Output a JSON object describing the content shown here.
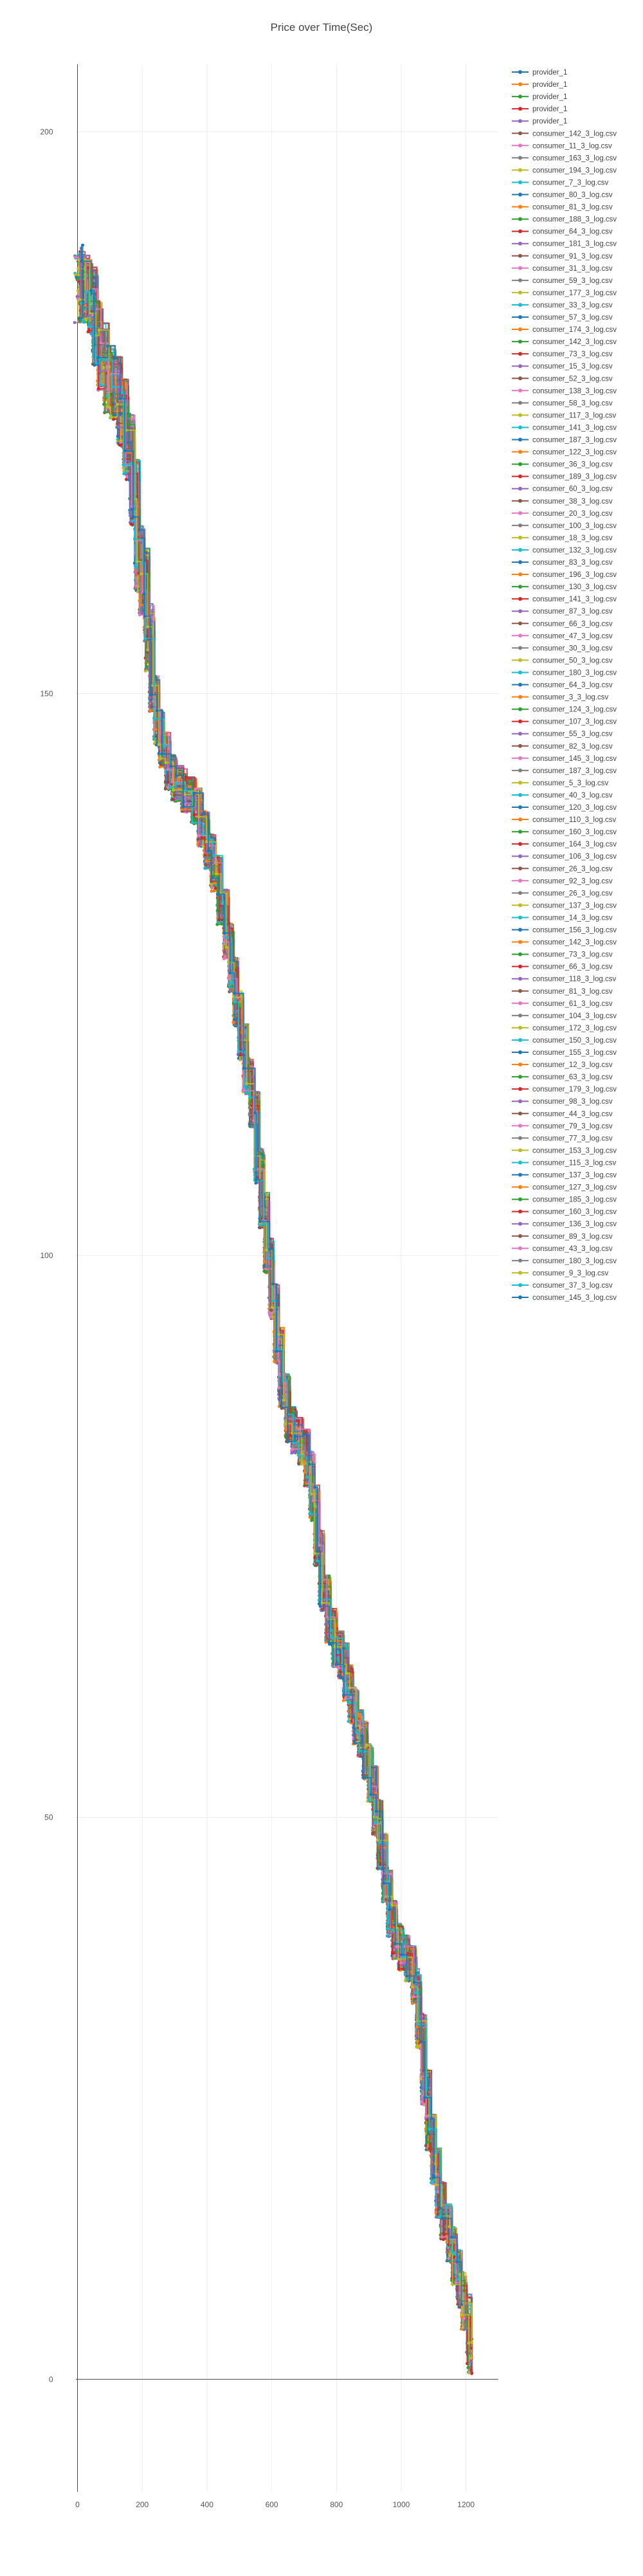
{
  "chart_data": {
    "type": "line",
    "title": "Price over Time(Sec)",
    "xlabel": "",
    "ylabel": "",
    "xlim": [
      -5,
      1300
    ],
    "ylim": [
      -10,
      206
    ],
    "x_ticks": [
      0,
      200,
      400,
      600,
      800,
      1000,
      1200
    ],
    "y_ticks": [
      0,
      50,
      100,
      150,
      200
    ],
    "grid": true,
    "legend_position": "right",
    "colors": [
      "#1f77b4",
      "#ff7f0e",
      "#2ca02c",
      "#d62728",
      "#9467bd",
      "#8c564b",
      "#e377c2",
      "#7f7f7f",
      "#bcbd22",
      "#17becf"
    ],
    "base_path": [
      [
        0,
        186
      ],
      [
        10,
        187
      ],
      [
        20,
        186
      ],
      [
        40,
        185
      ],
      [
        55,
        182
      ],
      [
        70,
        180
      ],
      [
        90,
        178
      ],
      [
        110,
        177
      ],
      [
        130,
        175
      ],
      [
        150,
        172
      ],
      [
        170,
        168
      ],
      [
        185,
        162
      ],
      [
        200,
        160
      ],
      [
        215,
        155
      ],
      [
        230,
        150
      ],
      [
        245,
        147
      ],
      [
        260,
        145
      ],
      [
        280,
        143
      ],
      [
        300,
        142
      ],
      [
        330,
        141
      ],
      [
        360,
        140
      ],
      [
        380,
        138
      ],
      [
        400,
        136
      ],
      [
        420,
        134
      ],
      [
        440,
        131
      ],
      [
        460,
        128
      ],
      [
        475,
        125
      ],
      [
        490,
        122
      ],
      [
        505,
        119
      ],
      [
        520,
        116
      ],
      [
        540,
        113
      ],
      [
        555,
        108
      ],
      [
        570,
        104
      ],
      [
        585,
        100
      ],
      [
        600,
        96
      ],
      [
        615,
        92
      ],
      [
        630,
        88
      ],
      [
        650,
        85
      ],
      [
        670,
        84
      ],
      [
        690,
        83
      ],
      [
        710,
        81
      ],
      [
        725,
        78
      ],
      [
        740,
        74
      ],
      [
        755,
        70
      ],
      [
        775,
        67
      ],
      [
        795,
        65
      ],
      [
        815,
        64
      ],
      [
        830,
        62
      ],
      [
        845,
        60
      ],
      [
        860,
        58
      ],
      [
        875,
        57
      ],
      [
        890,
        55
      ],
      [
        905,
        53
      ],
      [
        920,
        50
      ],
      [
        935,
        47
      ],
      [
        950,
        44
      ],
      [
        965,
        41
      ],
      [
        980,
        39
      ],
      [
        1000,
        38
      ],
      [
        1020,
        37
      ],
      [
        1040,
        35
      ],
      [
        1055,
        31
      ],
      [
        1070,
        26
      ],
      [
        1085,
        22
      ],
      [
        1100,
        19
      ],
      [
        1115,
        16
      ],
      [
        1130,
        14
      ],
      [
        1150,
        12
      ],
      [
        1165,
        10
      ],
      [
        1180,
        8
      ],
      [
        1195,
        6
      ],
      [
        1210,
        2
      ]
    ],
    "series": [
      {
        "name": "provider_1",
        "values": []
      },
      {
        "name": "provider_1",
        "values": []
      },
      {
        "name": "provider_1",
        "values": []
      },
      {
        "name": "provider_1",
        "values": []
      },
      {
        "name": "provider_1",
        "values": []
      },
      {
        "name": "consumer_142_3_log.csv",
        "values": []
      },
      {
        "name": "consumer_11_3_log.csv",
        "values": []
      },
      {
        "name": "consumer_163_3_log.csv",
        "values": []
      },
      {
        "name": "consumer_194_3_log.csv",
        "values": []
      },
      {
        "name": "consumer_7_3_log.csv",
        "values": []
      },
      {
        "name": "consumer_80_3_log.csv",
        "values": []
      },
      {
        "name": "consumer_81_3_log.csv",
        "values": []
      },
      {
        "name": "consumer_188_3_log.csv",
        "values": []
      },
      {
        "name": "consumer_64_3_log.csv",
        "values": []
      },
      {
        "name": "consumer_181_3_log.csv",
        "values": []
      },
      {
        "name": "consumer_91_3_log.csv",
        "values": []
      },
      {
        "name": "consumer_31_3_log.csv",
        "values": []
      },
      {
        "name": "consumer_59_3_log.csv",
        "values": []
      },
      {
        "name": "consumer_177_3_log.csv",
        "values": []
      },
      {
        "name": "consumer_33_3_log.csv",
        "values": []
      },
      {
        "name": "consumer_57_3_log.csv",
        "values": []
      },
      {
        "name": "consumer_174_3_log.csv",
        "values": []
      },
      {
        "name": "consumer_142_3_log.csv",
        "values": []
      },
      {
        "name": "consumer_73_3_log.csv",
        "values": []
      },
      {
        "name": "consumer_15_3_log.csv",
        "values": []
      },
      {
        "name": "consumer_52_3_log.csv",
        "values": []
      },
      {
        "name": "consumer_138_3_log.csv",
        "values": []
      },
      {
        "name": "consumer_58_3_log.csv",
        "values": []
      },
      {
        "name": "consumer_117_3_log.csv",
        "values": []
      },
      {
        "name": "consumer_141_3_log.csv",
        "values": []
      },
      {
        "name": "consumer_187_3_log.csv",
        "values": []
      },
      {
        "name": "consumer_122_3_log.csv",
        "values": []
      },
      {
        "name": "consumer_36_3_log.csv",
        "values": []
      },
      {
        "name": "consumer_189_3_log.csv",
        "values": []
      },
      {
        "name": "consumer_60_3_log.csv",
        "values": []
      },
      {
        "name": "consumer_38_3_log.csv",
        "values": []
      },
      {
        "name": "consumer_20_3_log.csv",
        "values": []
      },
      {
        "name": "consumer_100_3_log.csv",
        "values": []
      },
      {
        "name": "consumer_18_3_log.csv",
        "values": []
      },
      {
        "name": "consumer_132_3_log.csv",
        "values": []
      },
      {
        "name": "consumer_83_3_log.csv",
        "values": []
      },
      {
        "name": "consumer_196_3_log.csv",
        "values": []
      },
      {
        "name": "consumer_130_3_log.csv",
        "values": []
      },
      {
        "name": "consumer_141_3_log.csv",
        "values": []
      },
      {
        "name": "consumer_87_3_log.csv",
        "values": []
      },
      {
        "name": "consumer_66_3_log.csv",
        "values": []
      },
      {
        "name": "consumer_47_3_log.csv",
        "values": []
      },
      {
        "name": "consumer_30_3_log.csv",
        "values": []
      },
      {
        "name": "consumer_50_3_log.csv",
        "values": []
      },
      {
        "name": "consumer_180_3_log.csv",
        "values": []
      },
      {
        "name": "consumer_64_3_log.csv",
        "values": []
      },
      {
        "name": "consumer_3_3_log.csv",
        "values": []
      },
      {
        "name": "consumer_124_3_log.csv",
        "values": []
      },
      {
        "name": "consumer_107_3_log.csv",
        "values": []
      },
      {
        "name": "consumer_55_3_log.csv",
        "values": []
      },
      {
        "name": "consumer_82_3_log.csv",
        "values": []
      },
      {
        "name": "consumer_145_3_log.csv",
        "values": []
      },
      {
        "name": "consumer_187_3_log.csv",
        "values": []
      },
      {
        "name": "consumer_5_3_log.csv",
        "values": []
      },
      {
        "name": "consumer_40_3_log.csv",
        "values": []
      },
      {
        "name": "consumer_120_3_log.csv",
        "values": []
      },
      {
        "name": "consumer_110_3_log.csv",
        "values": []
      },
      {
        "name": "consumer_160_3_log.csv",
        "values": []
      },
      {
        "name": "consumer_164_3_log.csv",
        "values": []
      },
      {
        "name": "consumer_106_3_log.csv",
        "values": []
      },
      {
        "name": "consumer_26_3_log.csv",
        "values": []
      },
      {
        "name": "consumer_92_3_log.csv",
        "values": []
      },
      {
        "name": "consumer_26_3_log.csv",
        "values": []
      },
      {
        "name": "consumer_137_3_log.csv",
        "values": []
      },
      {
        "name": "consumer_14_3_log.csv",
        "values": []
      },
      {
        "name": "consumer_156_3_log.csv",
        "values": []
      },
      {
        "name": "consumer_142_3_log.csv",
        "values": []
      },
      {
        "name": "consumer_73_3_log.csv",
        "values": []
      },
      {
        "name": "consumer_66_3_log.csv",
        "values": []
      },
      {
        "name": "consumer_118_3_log.csv",
        "values": []
      },
      {
        "name": "consumer_81_3_log.csv",
        "values": []
      },
      {
        "name": "consumer_61_3_log.csv",
        "values": []
      },
      {
        "name": "consumer_104_3_log.csv",
        "values": []
      },
      {
        "name": "consumer_172_3_log.csv",
        "values": []
      },
      {
        "name": "consumer_150_3_log.csv",
        "values": []
      },
      {
        "name": "consumer_155_3_log.csv",
        "values": []
      },
      {
        "name": "consumer_12_3_log.csv",
        "values": []
      },
      {
        "name": "consumer_63_3_log.csv",
        "values": []
      },
      {
        "name": "consumer_179_3_log.csv",
        "values": []
      },
      {
        "name": "consumer_98_3_log.csv",
        "values": []
      },
      {
        "name": "consumer_44_3_log.csv",
        "values": []
      },
      {
        "name": "consumer_79_3_log.csv",
        "values": []
      },
      {
        "name": "consumer_77_3_log.csv",
        "values": []
      },
      {
        "name": "consumer_153_3_log.csv",
        "values": []
      },
      {
        "name": "consumer_115_3_log.csv",
        "values": []
      },
      {
        "name": "consumer_137_3_log.csv",
        "values": []
      },
      {
        "name": "consumer_127_3_log.csv",
        "values": []
      },
      {
        "name": "consumer_185_3_log.csv",
        "values": []
      },
      {
        "name": "consumer_160_3_log.csv",
        "values": []
      },
      {
        "name": "consumer_136_3_log.csv",
        "values": []
      },
      {
        "name": "consumer_89_3_log.csv",
        "values": []
      },
      {
        "name": "consumer_43_3_log.csv",
        "values": []
      },
      {
        "name": "consumer_180_3_log.csv",
        "values": []
      },
      {
        "name": "consumer_9_3_log.csv",
        "values": []
      },
      {
        "name": "consumer_37_3_log.csv",
        "values": []
      },
      {
        "name": "consumer_145_3_log.csv",
        "values": []
      }
    ]
  }
}
